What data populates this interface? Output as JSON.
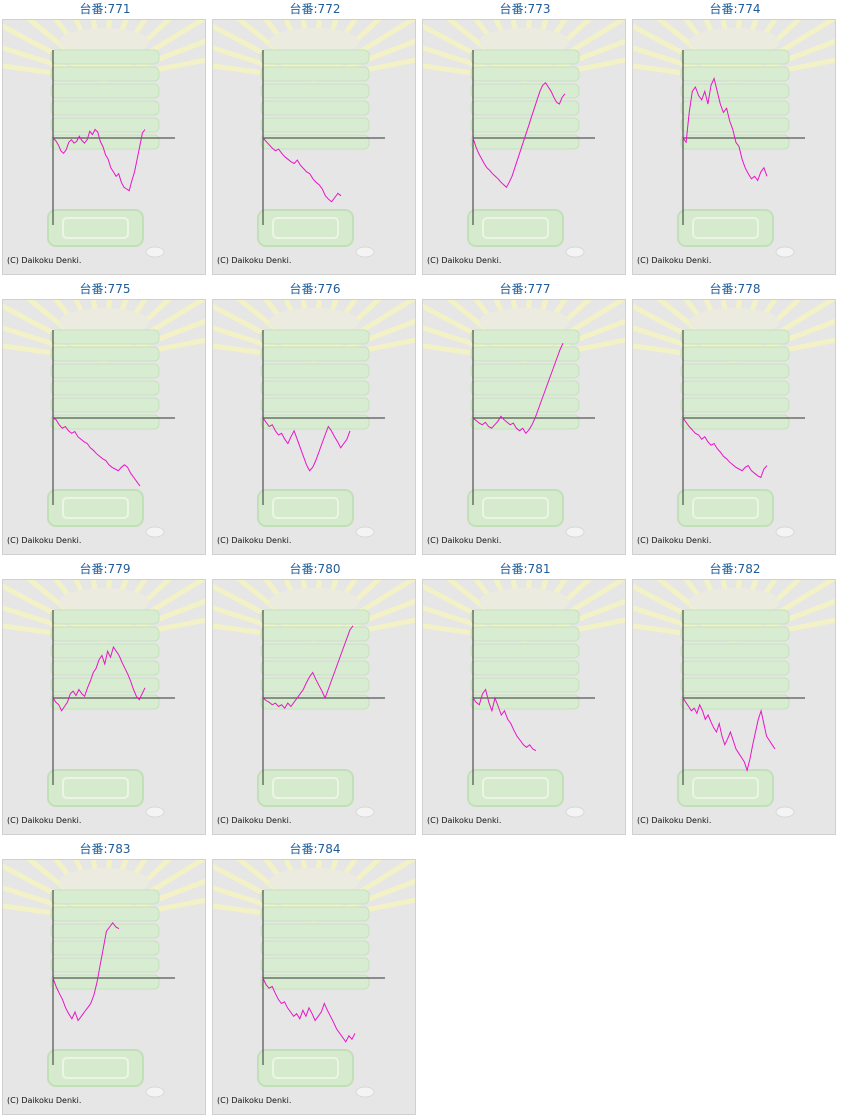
{
  "colors": {
    "line": "#e815c8",
    "axis": "#333333",
    "title": "#1f5c99",
    "panel": "#e6e6e6"
  },
  "machines": [
    {
      "label": "台番:771",
      "copyright": "(C) Daikoku Denki.",
      "values": [
        0,
        -3,
        -8,
        -15,
        -18,
        -14,
        -5,
        -2,
        -6,
        -4,
        2,
        -3,
        -6,
        -2,
        8,
        4,
        10,
        7,
        -4,
        -10,
        -20,
        -25,
        -35,
        -40,
        -45,
        -42,
        -52,
        -58,
        -60,
        -62,
        -50,
        -40,
        -25,
        -10,
        6,
        10
      ]
    },
    {
      "label": "台番:772",
      "copyright": "(C) Daikoku Denki.",
      "values": [
        0,
        -4,
        -8,
        -12,
        -15,
        -13,
        -18,
        -22,
        -25,
        -28,
        -30,
        -26,
        -32,
        -36,
        -40,
        -42,
        -48,
        -52,
        -55,
        -60,
        -68,
        -72,
        -75,
        -70,
        -65,
        -68
      ]
    },
    {
      "label": "台番:773",
      "copyright": "(C) Daikoku Denki.",
      "values": [
        0,
        -10,
        -18,
        -24,
        -30,
        -35,
        -38,
        -42,
        -45,
        -48,
        -52,
        -55,
        -58,
        -52,
        -45,
        -35,
        -25,
        -15,
        -5,
        5,
        15,
        25,
        35,
        45,
        55,
        62,
        65,
        60,
        55,
        48,
        42,
        40,
        48,
        52
      ]
    },
    {
      "label": "台番:774",
      "copyright": "(C) Daikoku Denki.",
      "values": [
        0,
        -5,
        30,
        55,
        60,
        50,
        45,
        55,
        40,
        62,
        70,
        55,
        40,
        30,
        35,
        20,
        10,
        -5,
        -10,
        -25,
        -35,
        -42,
        -48,
        -45,
        -50,
        -40,
        -35,
        -45
      ]
    },
    {
      "label": "台番:775",
      "copyright": "(C) Daikoku Denki.",
      "values": [
        0,
        -2,
        -8,
        -12,
        -10,
        -15,
        -18,
        -16,
        -22,
        -25,
        -28,
        -30,
        -35,
        -38,
        -42,
        -45,
        -48,
        -50,
        -55,
        -58,
        -60,
        -62,
        -58,
        -55,
        -58,
        -65,
        -70,
        -75,
        -80
      ]
    },
    {
      "label": "台番:776",
      "copyright": "(C) Daikoku Denki.",
      "values": [
        0,
        -5,
        -10,
        -8,
        -15,
        -20,
        -18,
        -25,
        -30,
        -22,
        -15,
        -25,
        -35,
        -45,
        -55,
        -62,
        -58,
        -50,
        -40,
        -30,
        -20,
        -10,
        -15,
        -22,
        -28,
        -35,
        -30,
        -25,
        -15
      ]
    },
    {
      "label": "台番:777",
      "copyright": "(C) Daikoku Denki.",
      "values": [
        0,
        -3,
        -6,
        -8,
        -5,
        -10,
        -12,
        -8,
        -4,
        2,
        -2,
        -5,
        -8,
        -6,
        -12,
        -15,
        -12,
        -18,
        -14,
        -8,
        0,
        10,
        20,
        30,
        40,
        50,
        60,
        70,
        80,
        88
      ]
    },
    {
      "label": "台番:778",
      "copyright": "(C) Daikoku Denki.",
      "values": [
        0,
        -5,
        -10,
        -14,
        -18,
        -20,
        -25,
        -22,
        -28,
        -32,
        -30,
        -36,
        -40,
        -45,
        -48,
        -52,
        -55,
        -58,
        -60,
        -62,
        -58,
        -56,
        -62,
        -65,
        -68,
        -70,
        -60,
        -56
      ]
    },
    {
      "label": "台番:779",
      "copyright": "(C) Daikoku Denki.",
      "values": [
        0,
        -5,
        -8,
        -15,
        -10,
        -5,
        5,
        8,
        3,
        10,
        5,
        2,
        12,
        20,
        30,
        35,
        45,
        50,
        40,
        55,
        48,
        60,
        55,
        50,
        42,
        35,
        28,
        20,
        10,
        2,
        -2,
        5,
        12
      ]
    },
    {
      "label": "台番:780",
      "copyright": "(C) Daikoku Denki.",
      "values": [
        0,
        -3,
        -5,
        -8,
        -6,
        -10,
        -8,
        -12,
        -6,
        -10,
        -5,
        0,
        5,
        10,
        18,
        25,
        30,
        22,
        15,
        8,
        0,
        10,
        20,
        30,
        40,
        50,
        60,
        70,
        80,
        85
      ]
    },
    {
      "label": "台番:781",
      "copyright": "(C) Daikoku Denki.",
      "values": [
        0,
        -5,
        -8,
        5,
        10,
        -5,
        -15,
        0,
        -10,
        -20,
        -15,
        -25,
        -30,
        -38,
        -45,
        -50,
        -55,
        -58,
        -55,
        -60,
        -62
      ]
    },
    {
      "label": "台番:782",
      "copyright": "(C) Daikoku Denki.",
      "values": [
        0,
        -5,
        -10,
        -15,
        -12,
        -18,
        -8,
        -15,
        -25,
        -20,
        -28,
        -35,
        -40,
        -30,
        -45,
        -55,
        -48,
        -40,
        -50,
        -60,
        -65,
        -70,
        -75,
        -85,
        -72,
        -55,
        -40,
        -25,
        -15,
        -30,
        -45,
        -50,
        -55,
        -60
      ]
    },
    {
      "label": "台番:783",
      "copyright": "(C) Daikoku Denki.",
      "values": [
        0,
        -10,
        -18,
        -25,
        -35,
        -42,
        -48,
        -40,
        -50,
        -45,
        -40,
        -35,
        -30,
        -20,
        -5,
        15,
        35,
        55,
        60,
        65,
        60,
        58
      ]
    },
    {
      "label": "台番:784",
      "copyright": "(C) Daikoku Denki.",
      "values": [
        0,
        -8,
        -12,
        -10,
        -18,
        -25,
        -30,
        -28,
        -35,
        -40,
        -45,
        -42,
        -48,
        -38,
        -45,
        -35,
        -42,
        -50,
        -45,
        -40,
        -30,
        -38,
        -45,
        -52,
        -60,
        -65,
        -70,
        -75,
        -68,
        -72,
        -65
      ]
    }
  ]
}
